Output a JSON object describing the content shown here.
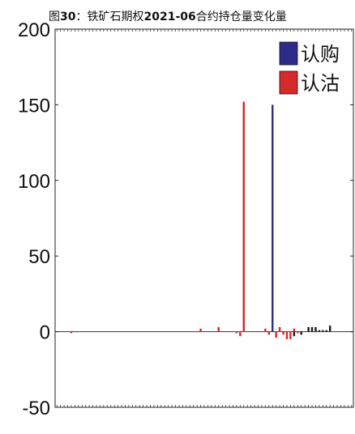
{
  "chart_data": {
    "type": "bar",
    "title": "图30：铁矿石期权2021-06合约持仓量变化量",
    "title_parts": {
      "a": "图",
      "b": "30",
      "c": "：铁矿石期权",
      "d": "2021-06",
      "e": "合约持仓量变化量"
    },
    "xlabel": "",
    "ylabel": "",
    "ylim": [
      -50,
      200
    ],
    "yticks": [
      -50,
      0,
      50,
      100,
      150,
      200
    ],
    "legend": {
      "placement": "top-right",
      "entries": [
        "认购",
        "认沽"
      ]
    },
    "colors": {
      "认购": "#2e2a8a",
      "认沽": "#d42a2a",
      "call_bar": "#1a1a1a"
    },
    "num_categories": 83,
    "series": [
      {
        "name": "认购",
        "points": [
          {
            "i": 60,
            "v": 150
          },
          {
            "i": 70,
            "v": 3
          },
          {
            "i": 71,
            "v": 3
          },
          {
            "i": 72,
            "v": 3
          },
          {
            "i": 73,
            "v": 1
          },
          {
            "i": 74,
            "v": 1
          },
          {
            "i": 75,
            "v": 1
          },
          {
            "i": 76,
            "v": 4
          },
          {
            "i": 66,
            "v": -3
          },
          {
            "i": 68,
            "v": -2
          }
        ]
      },
      {
        "name": "认沽",
        "points": [
          {
            "i": 40,
            "v": 2
          },
          {
            "i": 45,
            "v": 3
          },
          {
            "i": 52,
            "v": 152
          },
          {
            "i": 51,
            "v": -3
          },
          {
            "i": 58,
            "v": 2
          },
          {
            "i": 59,
            "v": -2
          },
          {
            "i": 61,
            "v": -4
          },
          {
            "i": 62,
            "v": 3
          },
          {
            "i": 63,
            "v": -2
          },
          {
            "i": 64,
            "v": -5
          },
          {
            "i": 65,
            "v": -5
          },
          {
            "i": 66,
            "v": 2
          },
          {
            "i": 67,
            "v": -1
          },
          {
            "i": 4,
            "v": -1
          },
          {
            "i": 50,
            "v": -1
          }
        ]
      }
    ]
  }
}
